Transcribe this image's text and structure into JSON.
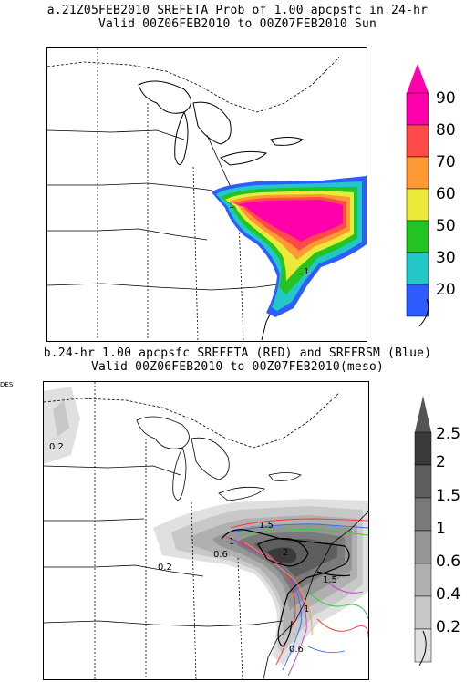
{
  "panel_a": {
    "title_line1": "a.21Z05FEB2010 SREFETA Prob of 1.00 apcpsfc in 24-hr",
    "title_line2": "Valid 00Z06FEB2010 to 00Z07FEB2010 Sun",
    "contour_labels": [
      "1",
      "1"
    ],
    "colorbar": {
      "levels": [
        {
          "label": "90",
          "color": "#ff00aa"
        },
        {
          "label": "80",
          "color": "#ff4a4a"
        },
        {
          "label": "70",
          "color": "#ff9933"
        },
        {
          "label": "60",
          "color": "#eaea3a"
        },
        {
          "label": "50",
          "color": "#22c322"
        },
        {
          "label": "30",
          "color": "#22c8c8"
        },
        {
          "label": "20",
          "color": "#2e5cff"
        }
      ],
      "top_color": "#ff00aa"
    }
  },
  "panel_b": {
    "title_line1": "b.24-hr 1.00 apcpsfc SREFETA (RED) and SREFRSM (Blue)",
    "title_line2": "Valid 00Z06FEB2010 to 00Z07FEB2010(meso)",
    "stray_text": "DES",
    "contour_labels": [
      "0.2",
      "0.2",
      "0.6",
      "1",
      "1.5",
      "2",
      "1.5",
      "1",
      "0.6"
    ],
    "colorbar": {
      "levels": [
        {
          "label": "2.5",
          "color": "#3a3a3a"
        },
        {
          "label": "2",
          "color": "#5e5e5e"
        },
        {
          "label": "1.5",
          "color": "#7a7a7a"
        },
        {
          "label": "1",
          "color": "#969696"
        },
        {
          "label": "0.6",
          "color": "#b0b0b0"
        },
        {
          "label": "0.4",
          "color": "#c8c8c8"
        },
        {
          "label": "0.2",
          "color": "#e0e0e0"
        }
      ],
      "top_color": "#555555"
    }
  }
}
